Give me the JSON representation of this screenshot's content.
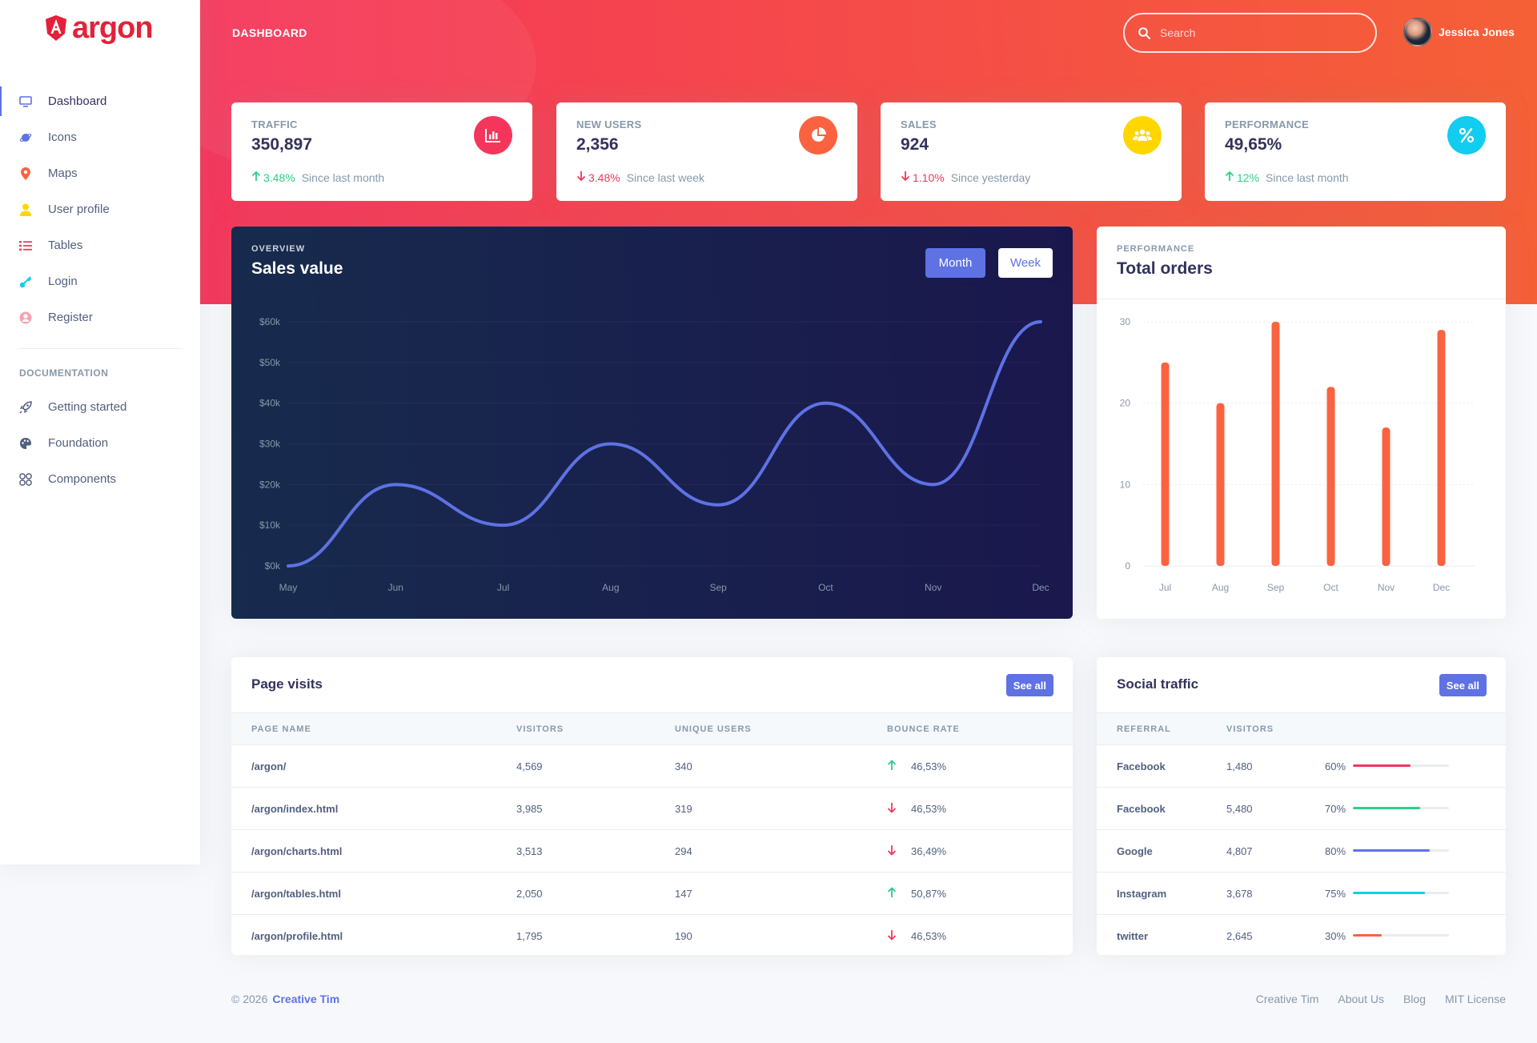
{
  "brand": {
    "name": "argon",
    "color": "#e4213a"
  },
  "sidebar": {
    "items": [
      {
        "label": "Dashboard",
        "icon": "tv-icon",
        "color": "#5e72e4",
        "active": true
      },
      {
        "label": "Icons",
        "icon": "planet-icon",
        "color": "#5e72e4"
      },
      {
        "label": "Maps",
        "icon": "pin-icon",
        "color": "#fb6340"
      },
      {
        "label": "User profile",
        "icon": "user-icon",
        "color": "#ffd600"
      },
      {
        "label": "Tables",
        "icon": "bullet-list-icon",
        "color": "#f5365c"
      },
      {
        "label": "Login",
        "icon": "key-icon",
        "color": "#11cdef"
      },
      {
        "label": "Register",
        "icon": "circle-user-icon",
        "color": "#f3a4b5"
      }
    ],
    "doc_heading": "DOCUMENTATION",
    "doc_items": [
      {
        "label": "Getting started",
        "icon": "rocket-icon"
      },
      {
        "label": "Foundation",
        "icon": "palette-icon"
      },
      {
        "label": "Components",
        "icon": "components-icon"
      }
    ]
  },
  "header": {
    "title": "DASHBOARD",
    "search_placeholder": "Search",
    "user_name": "Jessica Jones"
  },
  "stats": [
    {
      "title": "TRAFFIC",
      "value": "350,897",
      "trend": "up",
      "pct": "3.48%",
      "since": "Since last month",
      "icon": "bar-chart-icon",
      "icon_color": "#f5365c"
    },
    {
      "title": "NEW USERS",
      "value": "2,356",
      "trend": "down",
      "pct": "3.48%",
      "since": "Since last week",
      "icon": "pie-chart-icon",
      "icon_color": "#fb6340"
    },
    {
      "title": "SALES",
      "value": "924",
      "trend": "down",
      "pct": "1.10%",
      "since": "Since yesterday",
      "icon": "users-icon",
      "icon_color": "#ffd600"
    },
    {
      "title": "PERFORMANCE",
      "value": "49,65%",
      "trend": "up",
      "pct": "12%",
      "since": "Since last month",
      "icon": "percent-icon",
      "icon_color": "#11cdef"
    }
  ],
  "sales_card": {
    "kicker": "OVERVIEW",
    "title": "Sales value",
    "btn_month": "Month",
    "btn_week": "Week"
  },
  "orders_card": {
    "kicker": "PERFORMANCE",
    "title": "Total orders"
  },
  "chart_data": [
    {
      "type": "line",
      "title": "Sales value",
      "categories": [
        "May",
        "Jun",
        "Jul",
        "Aug",
        "Sep",
        "Oct",
        "Nov",
        "Dec"
      ],
      "values": [
        0,
        20,
        10,
        30,
        15,
        40,
        20,
        60
      ],
      "y_ticks": [
        "$0k",
        "$10k",
        "$20k",
        "$30k",
        "$40k",
        "$50k",
        "$60k"
      ],
      "ylim": [
        0,
        60
      ],
      "color": "#5e72e4",
      "grid": true
    },
    {
      "type": "bar",
      "title": "Total orders",
      "categories": [
        "Jul",
        "Aug",
        "Sep",
        "Oct",
        "Nov",
        "Dec"
      ],
      "values": [
        25,
        20,
        30,
        22,
        17,
        29
      ],
      "y_ticks": [
        "0",
        "10",
        "20",
        "30"
      ],
      "ylim": [
        0,
        30
      ],
      "color": "#fb6340",
      "grid": true
    }
  ],
  "page_visits": {
    "title": "Page visits",
    "see_all": "See all",
    "columns": [
      "PAGE NAME",
      "VISITORS",
      "UNIQUE USERS",
      "BOUNCE RATE"
    ],
    "rows": [
      {
        "page": "/argon/",
        "visitors": "4,569",
        "unique": "340",
        "trend": "up",
        "bounce": "46,53%"
      },
      {
        "page": "/argon/index.html",
        "visitors": "3,985",
        "unique": "319",
        "trend": "down",
        "bounce": "46,53%"
      },
      {
        "page": "/argon/charts.html",
        "visitors": "3,513",
        "unique": "294",
        "trend": "down",
        "bounce": "36,49%"
      },
      {
        "page": "/argon/tables.html",
        "visitors": "2,050",
        "unique": "147",
        "trend": "up",
        "bounce": "50,87%"
      },
      {
        "page": "/argon/profile.html",
        "visitors": "1,795",
        "unique": "190",
        "trend": "down",
        "bounce": "46,53%"
      }
    ]
  },
  "social_traffic": {
    "title": "Social traffic",
    "see_all": "See all",
    "columns": [
      "REFERRAL",
      "VISITORS"
    ],
    "rows": [
      {
        "referral": "Facebook",
        "visitors": "1,480",
        "pct": "60%",
        "fill": 60,
        "color": "#f5365c"
      },
      {
        "referral": "Facebook",
        "visitors": "5,480",
        "pct": "70%",
        "fill": 70,
        "color": "#2dce89"
      },
      {
        "referral": "Google",
        "visitors": "4,807",
        "pct": "80%",
        "fill": 80,
        "color": "#5e72e4"
      },
      {
        "referral": "Instagram",
        "visitors": "3,678",
        "pct": "75%",
        "fill": 75,
        "color": "#11cdef"
      },
      {
        "referral": "twitter",
        "visitors": "2,645",
        "pct": "30%",
        "fill": 30,
        "color": "#fb6340"
      }
    ]
  },
  "footer": {
    "copyright": "© 2026",
    "company": "Creative Tim",
    "links": [
      "Creative Tim",
      "About Us",
      "Blog",
      "MIT License"
    ]
  }
}
